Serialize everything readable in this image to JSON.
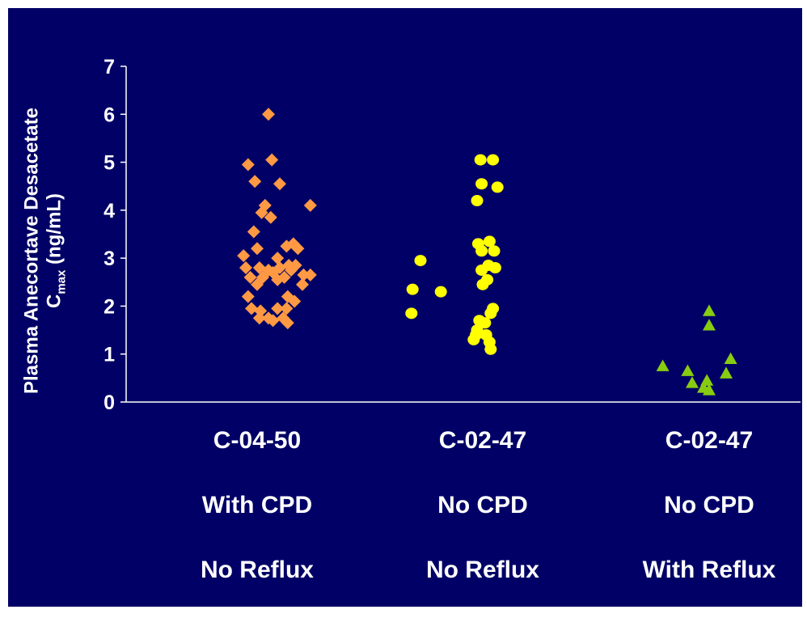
{
  "chart_data": {
    "type": "scatter",
    "title": "",
    "ylabel_line1": "Plasma Anecortave Desacetate",
    "ylabel_c": "C",
    "ylabel_sub": "max",
    "ylabel_unit": " (ng/mL)",
    "ylim": [
      0,
      7
    ],
    "yticks": [
      "0",
      "1",
      "2",
      "3",
      "4",
      "5",
      "6",
      "7"
    ],
    "grid": false,
    "categories": [
      {
        "line1": "C-04-50",
        "line2": "With CPD",
        "line3": "No Reflux"
      },
      {
        "line1": "C-02-47",
        "line2": "No CPD",
        "line3": "No Reflux"
      },
      {
        "line1": "C-02-47",
        "line2": "No CPD",
        "line3": "With Reflux"
      }
    ],
    "series": [
      {
        "marker": "diamond",
        "color": "#FF9944",
        "points": [
          [
            0.1,
            6.0
          ],
          [
            -0.08,
            4.95
          ],
          [
            0.13,
            5.05
          ],
          [
            -0.02,
            4.6
          ],
          [
            0.2,
            4.55
          ],
          [
            0.07,
            4.1
          ],
          [
            0.04,
            3.95
          ],
          [
            0.12,
            3.85
          ],
          [
            0.47,
            4.1
          ],
          [
            -0.03,
            3.55
          ],
          [
            0.0,
            3.2
          ],
          [
            0.26,
            3.25
          ],
          [
            0.32,
            3.3
          ],
          [
            0.36,
            3.2
          ],
          [
            -0.12,
            3.05
          ],
          [
            0.18,
            3.0
          ],
          [
            0.34,
            2.85
          ],
          [
            -0.1,
            2.8
          ],
          [
            0.02,
            2.8
          ],
          [
            0.1,
            2.75
          ],
          [
            0.2,
            2.8
          ],
          [
            0.28,
            2.85
          ],
          [
            0.3,
            2.75
          ],
          [
            0.14,
            2.7
          ],
          [
            0.41,
            2.65
          ],
          [
            0.47,
            2.65
          ],
          [
            -0.06,
            2.6
          ],
          [
            0.05,
            2.6
          ],
          [
            0.18,
            2.55
          ],
          [
            0.24,
            2.6
          ],
          [
            0.0,
            2.45
          ],
          [
            0.4,
            2.45
          ],
          [
            -0.08,
            2.2
          ],
          [
            0.27,
            2.2
          ],
          [
            0.33,
            2.1
          ],
          [
            -0.05,
            1.95
          ],
          [
            0.03,
            1.9
          ],
          [
            0.18,
            1.95
          ],
          [
            0.26,
            1.95
          ],
          [
            0.02,
            1.75
          ],
          [
            0.1,
            1.75
          ],
          [
            0.14,
            1.7
          ],
          [
            0.23,
            1.75
          ],
          [
            0.27,
            1.65
          ]
        ]
      },
      {
        "marker": "circle",
        "color": "#FFFF00",
        "points": [
          [
            -0.55,
            2.95
          ],
          [
            -0.62,
            2.35
          ],
          [
            -0.37,
            2.3
          ],
          [
            -0.63,
            1.85
          ],
          [
            -0.02,
            5.05
          ],
          [
            0.09,
            5.05
          ],
          [
            -0.01,
            4.55
          ],
          [
            0.13,
            4.48
          ],
          [
            -0.05,
            4.2
          ],
          [
            -0.04,
            3.3
          ],
          [
            0.06,
            3.35
          ],
          [
            0.1,
            3.15
          ],
          [
            -0.01,
            3.15
          ],
          [
            0.05,
            2.85
          ],
          [
            -0.01,
            2.75
          ],
          [
            0.11,
            2.8
          ],
          [
            0.04,
            2.55
          ],
          [
            0.0,
            2.45
          ],
          [
            0.09,
            1.95
          ],
          [
            0.07,
            1.85
          ],
          [
            -0.03,
            1.7
          ],
          [
            0.02,
            1.65
          ],
          [
            -0.05,
            1.5
          ],
          [
            -0.06,
            1.4
          ],
          [
            0.03,
            1.4
          ],
          [
            -0.08,
            1.3
          ],
          [
            0.06,
            1.25
          ],
          [
            0.07,
            1.1
          ]
        ]
      },
      {
        "marker": "triangle",
        "color": "#88CC11",
        "points": [
          [
            0.0,
            1.9
          ],
          [
            0.0,
            1.6
          ],
          [
            0.19,
            0.9
          ],
          [
            -0.41,
            0.75
          ],
          [
            -0.19,
            0.65
          ],
          [
            0.15,
            0.6
          ],
          [
            -0.15,
            0.4
          ],
          [
            -0.02,
            0.45
          ],
          [
            -0.05,
            0.3
          ],
          [
            0.0,
            0.25
          ]
        ]
      }
    ]
  }
}
